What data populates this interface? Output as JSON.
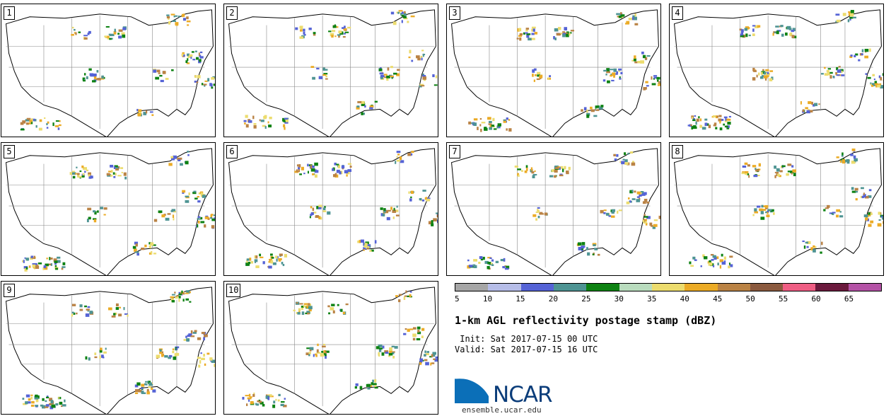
{
  "panels": [
    {
      "label": "1"
    },
    {
      "label": "2"
    },
    {
      "label": "3"
    },
    {
      "label": "4"
    },
    {
      "label": "5"
    },
    {
      "label": "6"
    },
    {
      "label": "7"
    },
    {
      "label": "8"
    },
    {
      "label": "9"
    },
    {
      "label": "10"
    }
  ],
  "colorbar": {
    "colors": [
      "#a6a6a6",
      "#b6bde8",
      "#5563d6",
      "#4e9493",
      "#0e8213",
      "#b9dcbe",
      "#ecdc6e",
      "#ebab26",
      "#ba8345",
      "#8b5a3f",
      "#ef5e84",
      "#6b1a3d",
      "#b452a6"
    ],
    "ticks": [
      "5",
      "10",
      "15",
      "20",
      "25",
      "30",
      "35",
      "40",
      "45",
      "50",
      "55",
      "60",
      "65"
    ]
  },
  "title": "1-km AGL reflectivity postage stamp (dBZ)",
  "init": " Init: Sat 2017-07-15 00 UTC",
  "valid": "Valid: Sat 2017-07-15 16 UTC",
  "logo": {
    "text": "NCAR",
    "color": "#0b6fb8"
  },
  "website": "ensemble.ucar.edu"
}
